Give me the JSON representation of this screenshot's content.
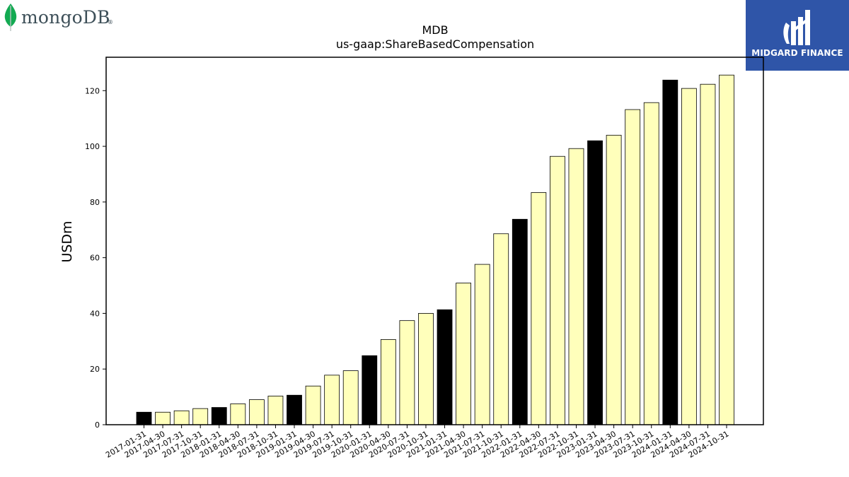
{
  "logos": {
    "left": {
      "text": "mongoDB",
      "mark": "®",
      "icon": "mongodb-leaf-icon",
      "leaf_color": "#13aa52"
    },
    "right": {
      "text": "MIDGARD FINANCE",
      "icon": "midgard-finance-mark-icon",
      "background": "#2f55a8"
    }
  },
  "chart_data": {
    "type": "bar",
    "title": "MDB",
    "subtitle": "us-gaap:ShareBasedCompensation",
    "xlabel": "",
    "ylabel": "USDm",
    "ylim": [
      0,
      132
    ],
    "yticks": [
      0,
      20,
      40,
      60,
      80,
      100,
      120
    ],
    "grid": false,
    "highlight_color": "#000000",
    "bar_color": "#ffffbb",
    "categories": [
      "2017-01-31",
      "2017-04-30",
      "2017-07-31",
      "2017-10-31",
      "2018-01-31",
      "2018-04-30",
      "2018-07-31",
      "2018-10-31",
      "2019-01-31",
      "2019-04-30",
      "2019-07-31",
      "2019-10-31",
      "2020-01-31",
      "2020-04-30",
      "2020-07-31",
      "2020-10-31",
      "2021-01-31",
      "2021-04-30",
      "2021-07-31",
      "2021-10-31",
      "2022-01-31",
      "2022-04-30",
      "2022-07-31",
      "2022-10-31",
      "2023-01-31",
      "2023-04-30",
      "2023-07-31",
      "2023-10-31",
      "2024-01-31",
      "2024-04-30",
      "2024-07-31",
      "2024-10-31"
    ],
    "values": [
      4.5,
      4.5,
      5.0,
      5.8,
      6.2,
      7.5,
      9.0,
      10.3,
      10.6,
      13.9,
      17.8,
      19.4,
      24.8,
      30.6,
      37.4,
      40.0,
      41.3,
      50.9,
      57.6,
      68.6,
      73.8,
      83.4,
      96.4,
      99.2,
      102.0,
      104.0,
      113.2,
      115.7,
      123.8,
      120.8,
      122.3,
      125.6
    ],
    "highlighted": [
      true,
      false,
      false,
      false,
      true,
      false,
      false,
      false,
      true,
      false,
      false,
      false,
      true,
      false,
      false,
      false,
      true,
      false,
      false,
      false,
      true,
      false,
      false,
      false,
      true,
      false,
      false,
      false,
      true,
      false,
      false,
      false
    ]
  }
}
